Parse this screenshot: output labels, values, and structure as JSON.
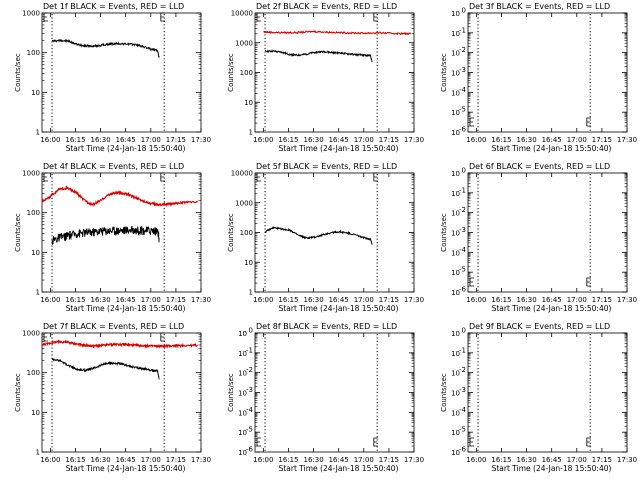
{
  "chart_data": [
    {
      "type": "line",
      "title": "Det 1f BLACK = Events, RED = LLD",
      "xlabel": "Start Time (24-Jan-18 15:50:40)",
      "ylabel": "Counts/sec",
      "yscale": "log",
      "ylim": [
        1,
        1000
      ],
      "x_ticks": [
        "16:00",
        "16:15",
        "16:30",
        "16:45",
        "17:00",
        "17:15",
        "17:30"
      ],
      "y_ticks": [
        "1",
        "10",
        "100",
        "1000"
      ],
      "vlines": [
        "16:01",
        "17:08",
        "17:32"
      ],
      "series": [
        {
          "color": "#000000",
          "x": [
            "16:01",
            "16:06",
            "16:11",
            "16:16",
            "16:21",
            "16:26",
            "16:31",
            "16:36",
            "16:41",
            "16:46",
            "16:51",
            "16:56",
            "17:01",
            "17:04",
            "17:05"
          ],
          "y": [
            195,
            205,
            195,
            160,
            150,
            145,
            155,
            165,
            170,
            165,
            160,
            140,
            120,
            115,
            75
          ]
        }
      ]
    },
    {
      "type": "line",
      "title": "Det 2f BLACK = Events, RED = LLD",
      "xlabel": "Start Time (24-Jan-18 15:50:40)",
      "ylabel": "Counts/sec",
      "yscale": "log",
      "ylim": [
        1,
        10000
      ],
      "x_ticks": [
        "16:00",
        "16:15",
        "16:30",
        "16:45",
        "17:00",
        "17:15",
        "17:30"
      ],
      "y_ticks": [
        "1",
        "10",
        "100",
        "1000",
        "10000"
      ],
      "vlines": [
        "16:01",
        "17:08",
        "17:32"
      ],
      "series": [
        {
          "color": "#000000",
          "x": [
            "16:01",
            "16:06",
            "16:11",
            "16:16",
            "16:21",
            "16:26",
            "16:31",
            "16:36",
            "16:41",
            "16:46",
            "16:51",
            "16:56",
            "17:01",
            "17:04",
            "17:05"
          ],
          "y": [
            520,
            520,
            480,
            400,
            380,
            420,
            480,
            500,
            470,
            450,
            420,
            400,
            380,
            370,
            230
          ]
        },
        {
          "color": "#dd0000",
          "x": [
            "16:00",
            "16:10",
            "16:20",
            "16:30",
            "16:40",
            "16:50",
            "17:00",
            "17:10",
            "17:20",
            "17:28"
          ],
          "y": [
            2300,
            2200,
            2200,
            2400,
            2250,
            2150,
            2100,
            2150,
            2050,
            2000
          ]
        }
      ]
    },
    {
      "type": "line",
      "title": "Det 3f BLACK = Events, RED = LLD",
      "xlabel": "Start Time (24-Jan-18 15:50:40)",
      "ylabel": "Counts/sec",
      "yscale": "log",
      "ylim": [
        1e-06,
        1
      ],
      "x_ticks": [
        "16:00",
        "16:15",
        "16:30",
        "16:45",
        "17:00",
        "17:15",
        "17:30"
      ],
      "y_ticks": [
        "10^-6",
        "10^-5",
        "10^-4",
        "10^-3",
        "10^-2",
        "10^-1",
        "10^0"
      ],
      "vlines": [
        "16:01",
        "17:08",
        "17:32"
      ],
      "series": []
    },
    {
      "type": "line",
      "title": "Det 4f BLACK = Events, RED = LLD",
      "xlabel": "Start Time (24-Jan-18 15:50:40)",
      "ylabel": "Counts/sec",
      "yscale": "log",
      "ylim": [
        1,
        1000
      ],
      "x_ticks": [
        "16:00",
        "16:15",
        "16:30",
        "16:45",
        "17:00",
        "17:15",
        "17:30"
      ],
      "y_ticks": [
        "1",
        "10",
        "100",
        "1000"
      ],
      "vlines": [
        "16:01",
        "17:08",
        "17:32"
      ],
      "series": [
        {
          "color": "#000000",
          "x": [
            "16:01",
            "16:06",
            "16:11",
            "16:16",
            "16:21",
            "16:26",
            "16:31",
            "16:36",
            "16:41",
            "16:46",
            "16:51",
            "16:56",
            "17:01",
            "17:04",
            "17:05"
          ],
          "y": [
            20,
            24,
            27,
            30,
            32,
            33,
            35,
            36,
            36,
            37,
            37,
            36,
            36,
            35,
            22
          ]
        },
        {
          "color": "#dd0000",
          "x": [
            "15:55",
            "16:00",
            "16:05",
            "16:10",
            "16:15",
            "16:20",
            "16:25",
            "16:30",
            "16:35",
            "16:40",
            "16:45",
            "16:50",
            "16:55",
            "17:00",
            "17:05",
            "17:10",
            "17:15",
            "17:20",
            "17:28"
          ],
          "y": [
            190,
            260,
            380,
            420,
            330,
            210,
            160,
            200,
            290,
            320,
            300,
            250,
            200,
            170,
            160,
            165,
            175,
            180,
            185
          ]
        }
      ]
    },
    {
      "type": "line",
      "title": "Det 5f BLACK = Events, RED = LLD",
      "xlabel": "Start Time (24-Jan-18 15:50:40)",
      "ylabel": "Counts/sec",
      "yscale": "log",
      "ylim": [
        1,
        10000
      ],
      "x_ticks": [
        "16:00",
        "16:15",
        "16:30",
        "16:45",
        "17:00",
        "17:15",
        "17:30"
      ],
      "y_ticks": [
        "1",
        "10",
        "100",
        "1000",
        "10000"
      ],
      "vlines": [
        "16:01",
        "17:08",
        "17:32"
      ],
      "series": [
        {
          "color": "#000000",
          "x": [
            "16:01",
            "16:06",
            "16:11",
            "16:16",
            "16:21",
            "16:26",
            "16:31",
            "16:36",
            "16:41",
            "16:46",
            "16:51",
            "16:56",
            "17:01",
            "17:04",
            "17:05"
          ],
          "y": [
            105,
            145,
            130,
            120,
            80,
            65,
            70,
            85,
            100,
            105,
            95,
            80,
            65,
            60,
            40
          ]
        }
      ]
    },
    {
      "type": "line",
      "title": "Det 6f BLACK = Events, RED = LLD",
      "xlabel": "Start Time (24-Jan-18 15:50:40)",
      "ylabel": "Counts/sec",
      "yscale": "log",
      "ylim": [
        1e-06,
        1
      ],
      "x_ticks": [
        "16:00",
        "16:15",
        "16:30",
        "16:45",
        "17:00",
        "17:15",
        "17:30"
      ],
      "y_ticks": [
        "10^-6",
        "10^-5",
        "10^-4",
        "10^-3",
        "10^-2",
        "10^-1",
        "10^0"
      ],
      "vlines": [
        "16:01",
        "17:08",
        "17:32"
      ],
      "series": []
    },
    {
      "type": "line",
      "title": "Det 7f BLACK = Events, RED = LLD",
      "xlabel": "Start Time (24-Jan-18 15:50:40)",
      "ylabel": "Counts/sec",
      "yscale": "log",
      "ylim": [
        1,
        1000
      ],
      "x_ticks": [
        "16:00",
        "16:15",
        "16:30",
        "16:45",
        "17:00",
        "17:15",
        "17:30"
      ],
      "y_ticks": [
        "1",
        "10",
        "100",
        "1000"
      ],
      "vlines": [
        "16:01",
        "17:08",
        "17:32"
      ],
      "series": [
        {
          "color": "#000000",
          "x": [
            "16:01",
            "16:06",
            "16:11",
            "16:16",
            "16:21",
            "16:26",
            "16:31",
            "16:36",
            "16:41",
            "16:46",
            "16:51",
            "16:56",
            "17:01",
            "17:04",
            "17:05"
          ],
          "y": [
            220,
            200,
            150,
            120,
            115,
            130,
            160,
            175,
            170,
            150,
            135,
            125,
            115,
            110,
            70
          ]
        },
        {
          "color": "#dd0000",
          "x": [
            "15:55",
            "16:00",
            "16:05",
            "16:10",
            "16:15",
            "16:20",
            "16:25",
            "16:30",
            "16:35",
            "16:40",
            "16:45",
            "16:50",
            "16:55",
            "17:00",
            "17:05",
            "17:10",
            "17:15",
            "17:20",
            "17:28"
          ],
          "y": [
            500,
            560,
            600,
            590,
            540,
            490,
            470,
            480,
            510,
            520,
            510,
            490,
            480,
            470,
            465,
            470,
            480,
            485,
            490
          ]
        }
      ]
    },
    {
      "type": "line",
      "title": "Det 8f BLACK = Events, RED = LLD",
      "xlabel": "Start Time (24-Jan-18 15:50:40)",
      "ylabel": "Counts/sec",
      "yscale": "log",
      "ylim": [
        1e-06,
        1
      ],
      "x_ticks": [
        "16:00",
        "16:15",
        "16:30",
        "16:45",
        "17:00",
        "17:15",
        "17:30"
      ],
      "y_ticks": [
        "10^-6",
        "10^-5",
        "10^-4",
        "10^-3",
        "10^-2",
        "10^-1",
        "10^0"
      ],
      "vlines": [
        "16:01",
        "17:08",
        "17:32"
      ],
      "series": []
    },
    {
      "type": "line",
      "title": "Det 9f BLACK = Events, RED = LLD",
      "xlabel": "Start Time (24-Jan-18 15:50:40)",
      "ylabel": "Counts/sec",
      "yscale": "log",
      "ylim": [
        1e-06,
        1
      ],
      "x_ticks": [
        "16:00",
        "16:15",
        "16:30",
        "16:45",
        "17:00",
        "17:15",
        "17:30"
      ],
      "y_ticks": [
        "10^-6",
        "10^-5",
        "10^-4",
        "10^-3",
        "10^-2",
        "10^-1",
        "10^0"
      ],
      "vlines": [
        "16:01",
        "17:08",
        "17:32"
      ],
      "series": []
    }
  ]
}
